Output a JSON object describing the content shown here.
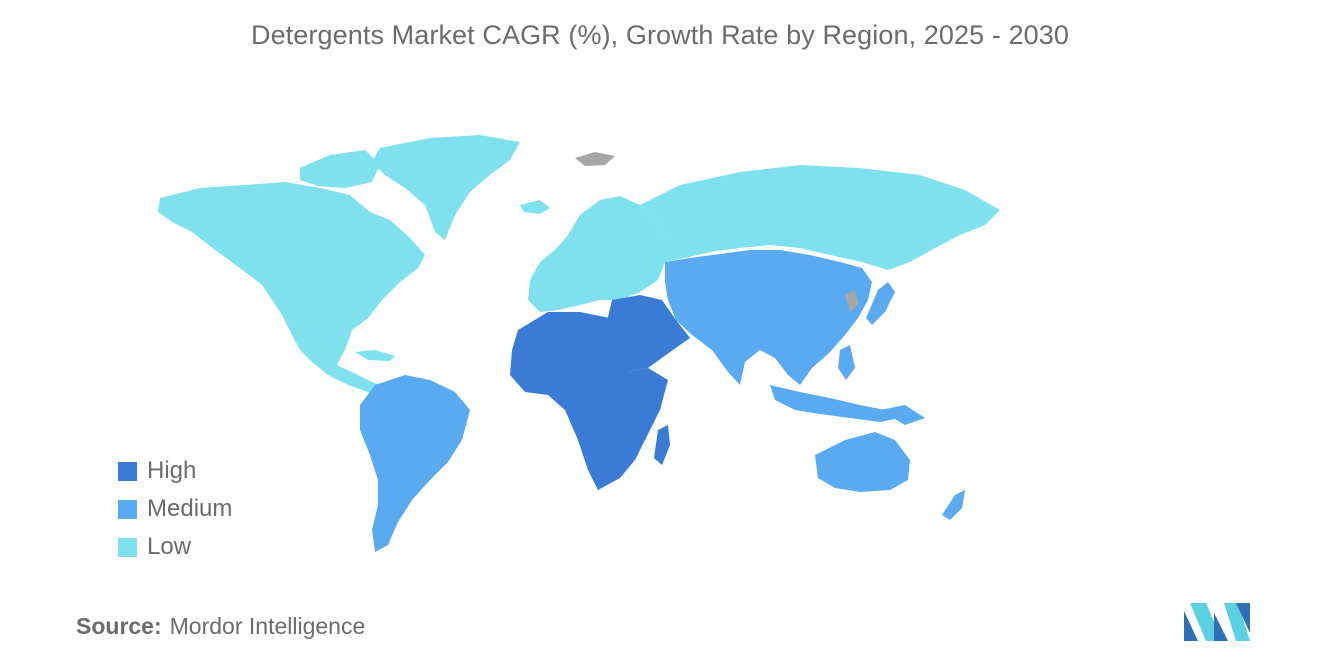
{
  "title": "Detergents Market CAGR (%), Growth Rate by Region, 2025 - 2030",
  "colors": {
    "high": "#3a7bd5",
    "medium": "#5aaaf2",
    "low": "#7fe0ee",
    "no_data": "#a6a6a6",
    "text": "#6b6b6b"
  },
  "legend": [
    {
      "label": "High",
      "color": "#3a7bd5"
    },
    {
      "label": "Medium",
      "color": "#5aaaf2"
    },
    {
      "label": "Low",
      "color": "#7fe0ee"
    }
  ],
  "regions": [
    {
      "name": "North America",
      "category": "Low"
    },
    {
      "name": "Europe",
      "category": "Low"
    },
    {
      "name": "Russia",
      "category": "Low"
    },
    {
      "name": "Greenland",
      "category": "Low"
    },
    {
      "name": "South America",
      "category": "Medium"
    },
    {
      "name": "Asia-Pacific",
      "category": "Medium"
    },
    {
      "name": "Australia",
      "category": "Medium"
    },
    {
      "name": "New Zealand",
      "category": "Medium"
    },
    {
      "name": "Middle East",
      "category": "High"
    },
    {
      "name": "Africa",
      "category": "High"
    }
  ],
  "source": {
    "label": "Source:",
    "value": "Mordor Intelligence"
  },
  "logo_icon": "mordor-intelligence-logo"
}
